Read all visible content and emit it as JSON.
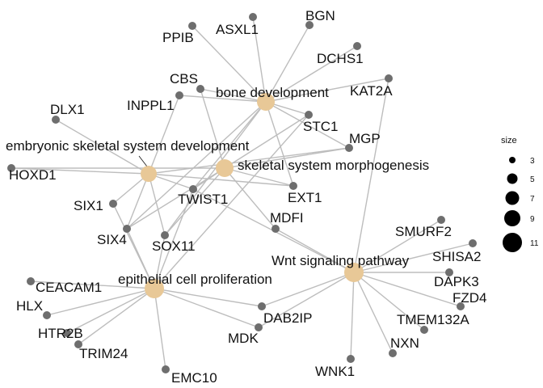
{
  "legend": {
    "title": "size",
    "items": [
      "3",
      "5",
      "7",
      "9",
      "11"
    ]
  },
  "categories": [
    {
      "id": "bone",
      "label": "bone development"
    },
    {
      "id": "emb",
      "label": "embryonic skeletal system development"
    },
    {
      "id": "skel",
      "label": "skeletal system morphogenesis"
    },
    {
      "id": "wnt",
      "label": "Wnt signaling pathway"
    },
    {
      "id": "epi",
      "label": "epithelial cell proliferation"
    }
  ],
  "genes": [
    {
      "id": "PPIB",
      "label": "PPIB"
    },
    {
      "id": "ASXL1",
      "label": "ASXL1"
    },
    {
      "id": "BGN",
      "label": "BGN"
    },
    {
      "id": "DCHS1",
      "label": "DCHS1"
    },
    {
      "id": "KAT2A",
      "label": "KAT2A"
    },
    {
      "id": "CBS",
      "label": "CBS"
    },
    {
      "id": "INPPL1",
      "label": "INPPL1"
    },
    {
      "id": "STC1",
      "label": "STC1"
    },
    {
      "id": "DLX1",
      "label": "DLX1"
    },
    {
      "id": "MGP",
      "label": "MGP"
    },
    {
      "id": "HOXD1",
      "label": "HOXD1"
    },
    {
      "id": "TWIST1",
      "label": "TWIST1"
    },
    {
      "id": "EXT1",
      "label": "EXT1"
    },
    {
      "id": "SIX1",
      "label": "SIX1"
    },
    {
      "id": "MDFI",
      "label": "MDFI"
    },
    {
      "id": "SIX4",
      "label": "SIX4"
    },
    {
      "id": "SOX11",
      "label": "SOX11"
    },
    {
      "id": "SMURF2",
      "label": "SMURF2"
    },
    {
      "id": "SHISA2",
      "label": "SHISA2"
    },
    {
      "id": "CEACAM1",
      "label": "CEACAM1"
    },
    {
      "id": "DAPK3",
      "label": "DAPK3"
    },
    {
      "id": "FZD4",
      "label": "FZD4"
    },
    {
      "id": "HLX",
      "label": "HLX"
    },
    {
      "id": "DAB2IP",
      "label": "DAB2IP"
    },
    {
      "id": "TMEM132A",
      "label": "TMEM132A"
    },
    {
      "id": "HTR2B",
      "label": "HTR2B"
    },
    {
      "id": "MDK",
      "label": "MDK"
    },
    {
      "id": "TRIM24",
      "label": "TRIM24"
    },
    {
      "id": "NXN",
      "label": "NXN"
    },
    {
      "id": "EMC10",
      "label": "EMC10"
    },
    {
      "id": "WNK1",
      "label": "WNK1"
    }
  ],
  "edges": [
    [
      "bone",
      "PPIB"
    ],
    [
      "bone",
      "ASXL1"
    ],
    [
      "bone",
      "BGN"
    ],
    [
      "bone",
      "DCHS1"
    ],
    [
      "bone",
      "KAT2A"
    ],
    [
      "bone",
      "CBS"
    ],
    [
      "bone",
      "INPPL1"
    ],
    [
      "bone",
      "STC1"
    ],
    [
      "bone",
      "TWIST1"
    ],
    [
      "bone",
      "MGP"
    ],
    [
      "bone",
      "EXT1"
    ],
    [
      "bone",
      "SOX11"
    ],
    [
      "bone",
      "SIX4"
    ],
    [
      "emb",
      "DLX1"
    ],
    [
      "emb",
      "HOXD1"
    ],
    [
      "emb",
      "SIX1"
    ],
    [
      "emb",
      "SIX4"
    ],
    [
      "emb",
      "TWIST1"
    ],
    [
      "emb",
      "SOX11"
    ],
    [
      "emb",
      "EXT1"
    ],
    [
      "emb",
      "INPPL1"
    ],
    [
      "emb",
      "MGP"
    ],
    [
      "skel",
      "MGP"
    ],
    [
      "skel",
      "STC1"
    ],
    [
      "skel",
      "EXT1"
    ],
    [
      "skel",
      "TWIST1"
    ],
    [
      "skel",
      "MDFI"
    ],
    [
      "skel",
      "SOX11"
    ],
    [
      "skel",
      "SIX4"
    ],
    [
      "skel",
      "CBS"
    ],
    [
      "skel",
      "HOXD1"
    ],
    [
      "wnt",
      "SMURF2"
    ],
    [
      "wnt",
      "SHISA2"
    ],
    [
      "wnt",
      "DAPK3"
    ],
    [
      "wnt",
      "FZD4"
    ],
    [
      "wnt",
      "TMEM132A"
    ],
    [
      "wnt",
      "NXN"
    ],
    [
      "wnt",
      "WNK1"
    ],
    [
      "wnt",
      "DAB2IP"
    ],
    [
      "wnt",
      "MDK"
    ],
    [
      "wnt",
      "TWIST1"
    ],
    [
      "wnt",
      "MDFI"
    ],
    [
      "wnt",
      "KAT2A"
    ],
    [
      "epi",
      "CEACAM1"
    ],
    [
      "epi",
      "HLX"
    ],
    [
      "epi",
      "HTR2B"
    ],
    [
      "epi",
      "TRIM24"
    ],
    [
      "epi",
      "EMC10"
    ],
    [
      "epi",
      "DAB2IP"
    ],
    [
      "epi",
      "MDK"
    ],
    [
      "epi",
      "SIX1"
    ],
    [
      "epi",
      "SIX4"
    ],
    [
      "epi",
      "TWIST1"
    ],
    [
      "epi",
      "SOX11"
    ],
    [
      "epi",
      "STC1"
    ]
  ]
}
